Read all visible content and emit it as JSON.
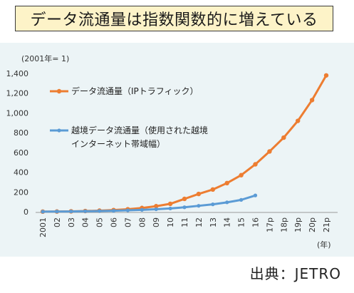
{
  "title": "データ流通量は指数関数的に増えている",
  "source": "出典：JETRO",
  "chart_data": {
    "type": "line",
    "unit_note": "(2001年= 1)",
    "x_unit": "(年)",
    "categories": [
      "2001",
      "02",
      "03",
      "04",
      "05",
      "06",
      "07",
      "08",
      "09",
      "10",
      "11",
      "12",
      "13",
      "14",
      "15",
      "16",
      "17p",
      "18p",
      "19p",
      "20p",
      "21p"
    ],
    "ylim": [
      0,
      1400
    ],
    "yticks": [
      "0",
      "200",
      "400",
      "600",
      "800",
      "1,000",
      "1,200",
      "1,400"
    ],
    "ytick_values": [
      0,
      200,
      400,
      600,
      800,
      1000,
      1200,
      1400
    ],
    "grid": false,
    "series": [
      {
        "name": "データ流通量（IPトラフィック）",
        "color": "#ed7d31",
        "values": [
          1,
          2,
          4,
          7,
          11,
          17,
          25,
          38,
          56,
          80,
          130,
          180,
          225,
          290,
          370,
          480,
          610,
          750,
          920,
          1130,
          1380
        ]
      },
      {
        "name_lines": [
          "越境データ流通量（使用された越境",
          "インターネット帯域幅）"
        ],
        "color": "#5b9bd5",
        "values": [
          1,
          2,
          3,
          5,
          7,
          10,
          14,
          19,
          25,
          33,
          45,
          60,
          75,
          95,
          120,
          165,
          null,
          null,
          null,
          null,
          null
        ]
      }
    ]
  }
}
